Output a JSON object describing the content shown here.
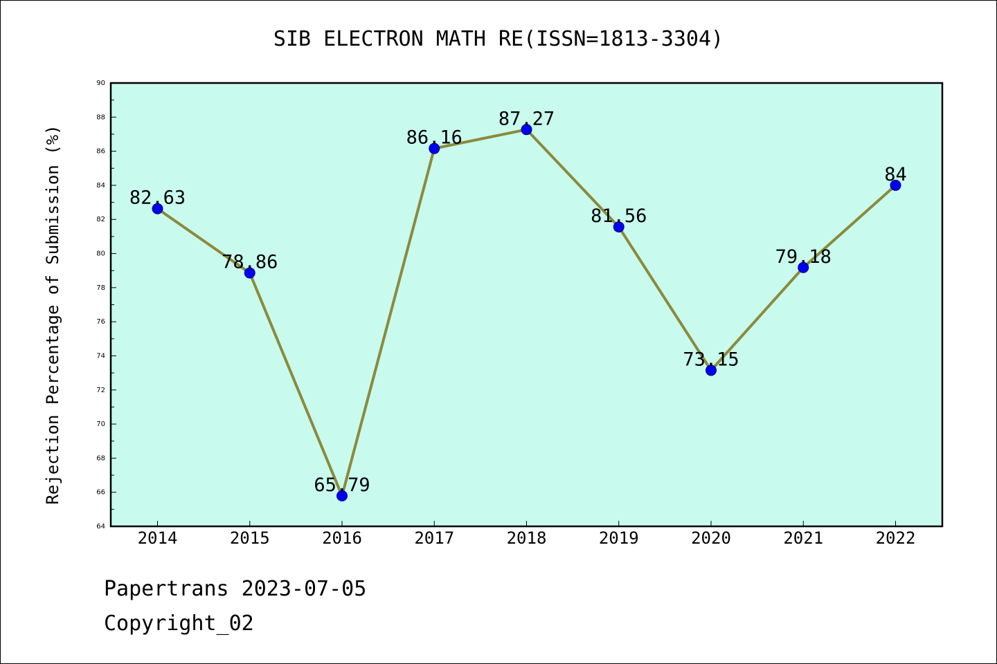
{
  "chart_data": {
    "type": "line",
    "title": "SIB ELECTRON MATH RE(ISSN=1813-3304)",
    "xlabel": "",
    "ylabel": "Rejection Percentage of Submission (%)",
    "categories": [
      "2014",
      "2015",
      "2016",
      "2017",
      "2018",
      "2019",
      "2020",
      "2021",
      "2022"
    ],
    "series": [
      {
        "name": "Rejection Percentage",
        "values": [
          82.63,
          78.86,
          65.79,
          86.16,
          87.27,
          81.56,
          73.15,
          79.18,
          84
        ],
        "labels": [
          "82.63",
          "78.86",
          "65.79",
          "86.16",
          "87.27",
          "81.56",
          "73.15",
          "79.18",
          "84"
        ]
      }
    ],
    "ylim": [
      64,
      90
    ],
    "yticks": [
      64,
      66,
      68,
      70,
      72,
      74,
      76,
      78,
      80,
      82,
      84,
      86,
      88,
      90
    ],
    "grid": false,
    "colors": {
      "plot_background": "#c8fbee",
      "line": "#8b8a3c",
      "marker": "#0000ee",
      "marker_edge": "#000080"
    }
  },
  "footer": {
    "line1": "Papertrans 2023-07-05",
    "line2": "Copyright_02"
  }
}
